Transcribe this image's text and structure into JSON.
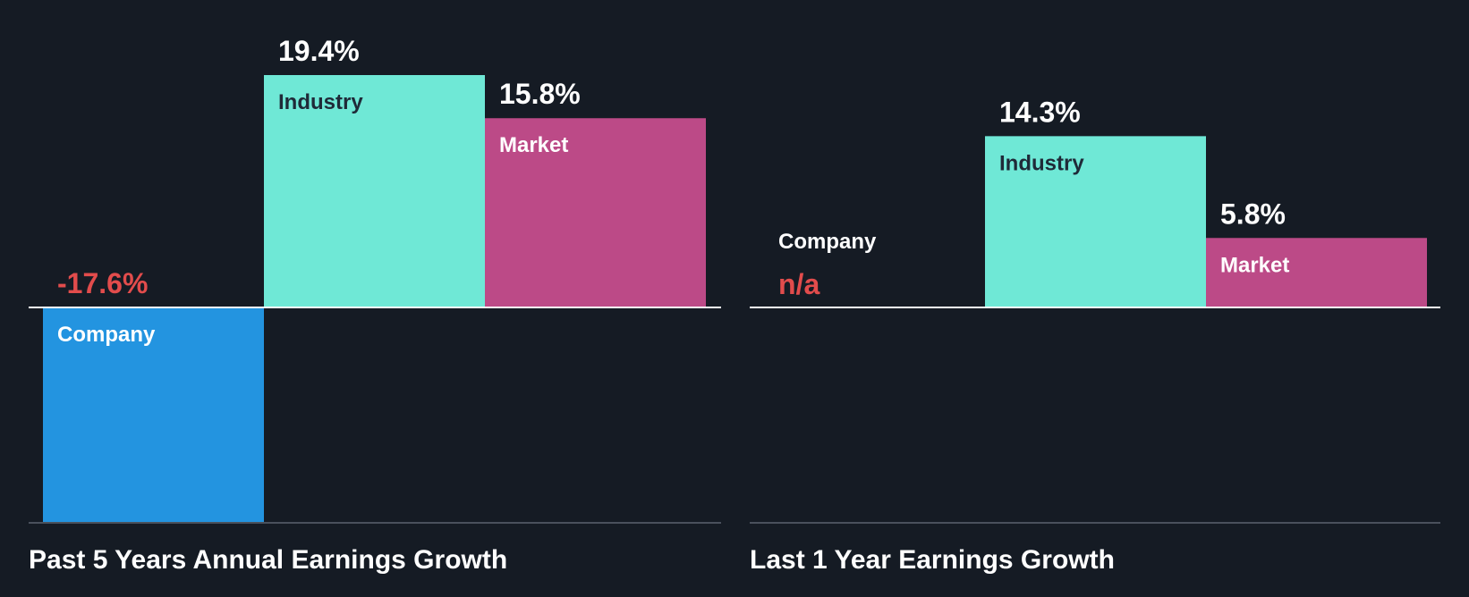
{
  "chart_data": [
    {
      "type": "bar",
      "title": "Past 5 Years Annual Earnings Growth",
      "categories": [
        "Company",
        "Industry",
        "Market"
      ],
      "values": [
        -17.6,
        19.4,
        15.8
      ],
      "value_labels": [
        "-17.6%",
        "19.4%",
        "15.8%"
      ],
      "ylim": [
        -17.6,
        19.4
      ],
      "colors": [
        "#2394e0",
        "#6fe8d6",
        "#bc4a87"
      ]
    },
    {
      "type": "bar",
      "title": "Last 1 Year Earnings Growth",
      "categories": [
        "Company",
        "Industry",
        "Market"
      ],
      "values": [
        null,
        14.3,
        5.8
      ],
      "value_labels": [
        "n/a",
        "14.3%",
        "5.8%"
      ],
      "ylim": [
        -17.6,
        19.4
      ],
      "colors": [
        "#2394e0",
        "#6fe8d6",
        "#bc4a87"
      ]
    }
  ],
  "colors": {
    "background": "#151b24",
    "negative_value": "#e24c4c",
    "positive_value": "#ffffff",
    "dark_label": "#1f2a38",
    "light_label": "#ffffff",
    "axis": "#ffffff",
    "baseline": "#4a515c"
  }
}
